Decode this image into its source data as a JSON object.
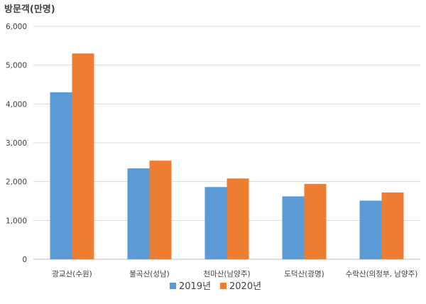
{
  "chart_data": {
    "type": "bar",
    "title": "",
    "unit_label": "방문객(만명)",
    "xlabel": "",
    "ylabel": "",
    "categories": [
      "광교산(수원)",
      "불곡산(성남)",
      "천마산(남양주)",
      "도덕산(광명)",
      "수락산(의정부, 남양주)"
    ],
    "series": [
      {
        "name": "2019년",
        "color": "#5b9bd5",
        "values": [
          4300,
          2340,
          1860,
          1620,
          1510
        ]
      },
      {
        "name": "2020년",
        "color": "#ed7d31",
        "values": [
          5300,
          2540,
          2080,
          1940,
          1720
        ]
      }
    ],
    "yticks": [
      "0",
      "1,000",
      "2,000",
      "3,000",
      "4,000",
      "5,000",
      "6,000"
    ],
    "ylim": [
      0,
      6000
    ],
    "grid": true,
    "legend": "bottom"
  }
}
